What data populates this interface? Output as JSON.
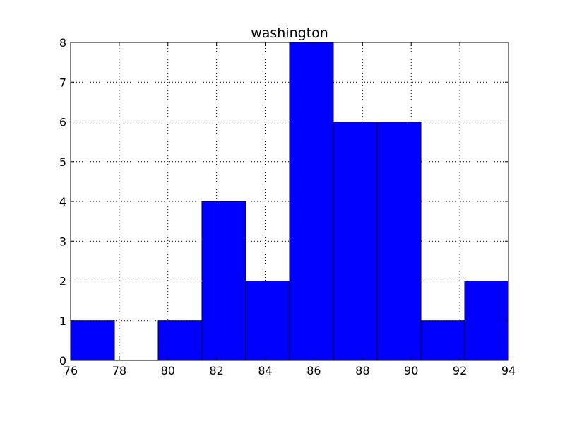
{
  "chart_data": {
    "type": "bar",
    "subtype": "histogram",
    "title": "washington",
    "xlabel": "",
    "ylabel": "",
    "bins": [
      {
        "start": 76.0,
        "end": 77.8,
        "count": 1
      },
      {
        "start": 77.8,
        "end": 79.6,
        "count": 0
      },
      {
        "start": 79.6,
        "end": 81.4,
        "count": 1
      },
      {
        "start": 81.4,
        "end": 83.2,
        "count": 4
      },
      {
        "start": 83.2,
        "end": 85.0,
        "count": 2
      },
      {
        "start": 85.0,
        "end": 86.8,
        "count": 8
      },
      {
        "start": 86.8,
        "end": 88.6,
        "count": 6
      },
      {
        "start": 88.6,
        "end": 90.4,
        "count": 6
      },
      {
        "start": 90.4,
        "end": 92.2,
        "count": 1
      },
      {
        "start": 92.2,
        "end": 94.0,
        "count": 2
      }
    ],
    "xlim": [
      76,
      94
    ],
    "ylim": [
      0,
      8
    ],
    "xticks": [
      "76",
      "78",
      "80",
      "82",
      "84",
      "86",
      "88",
      "90",
      "92",
      "94"
    ],
    "yticks": [
      "0",
      "1",
      "2",
      "3",
      "4",
      "5",
      "6",
      "7",
      "8"
    ],
    "grid": true,
    "bar_color": "#0000ff",
    "edge_color": "#000000"
  }
}
